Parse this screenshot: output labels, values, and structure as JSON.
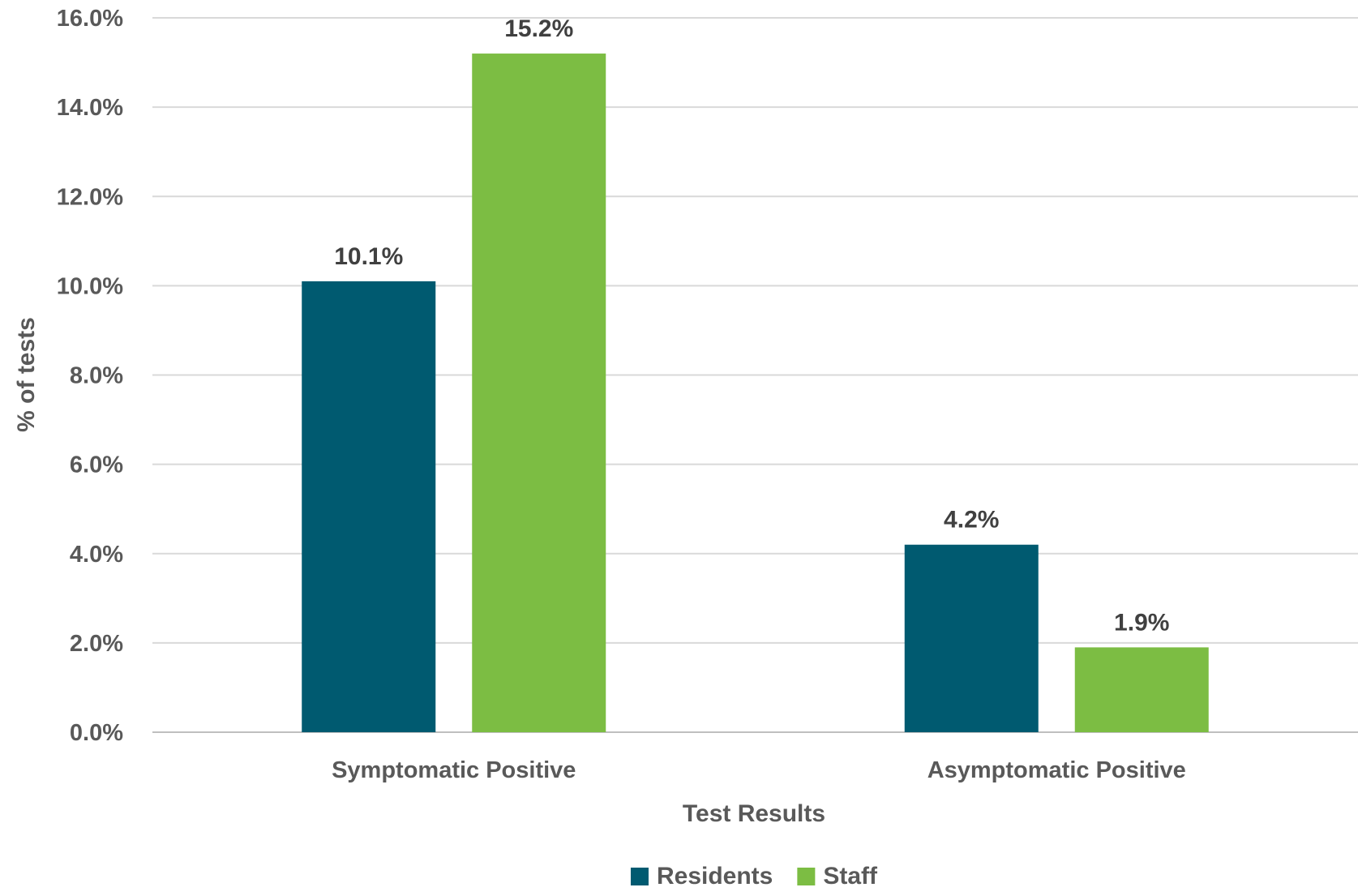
{
  "chart_data": {
    "type": "bar",
    "categories": [
      "Symptomatic Positive",
      "Asymptomatic Positive"
    ],
    "series": [
      {
        "name": "Residents",
        "values": [
          10.1,
          4.2
        ],
        "labels": [
          "10.1%",
          "4.2%"
        ],
        "color": "#005a70"
      },
      {
        "name": "Staff",
        "values": [
          15.2,
          1.9
        ],
        "labels": [
          "15.2%",
          "1.9%"
        ],
        "color": "#7cbd43"
      }
    ],
    "xlabel": "Test Results",
    "ylabel": "% of tests",
    "ylim": [
      0,
      16
    ],
    "yticks": [
      {
        "value": 0,
        "label": "0.0%"
      },
      {
        "value": 2,
        "label": "2.0%"
      },
      {
        "value": 4,
        "label": "4.0%"
      },
      {
        "value": 6,
        "label": "6.0%"
      },
      {
        "value": 8,
        "label": "8.0%"
      },
      {
        "value": 10,
        "label": "10.0%"
      },
      {
        "value": 12,
        "label": "12.0%"
      },
      {
        "value": 14,
        "label": "14.0%"
      },
      {
        "value": 16,
        "label": "16.0%"
      }
    ],
    "grid": true,
    "legend_position": "bottom"
  }
}
